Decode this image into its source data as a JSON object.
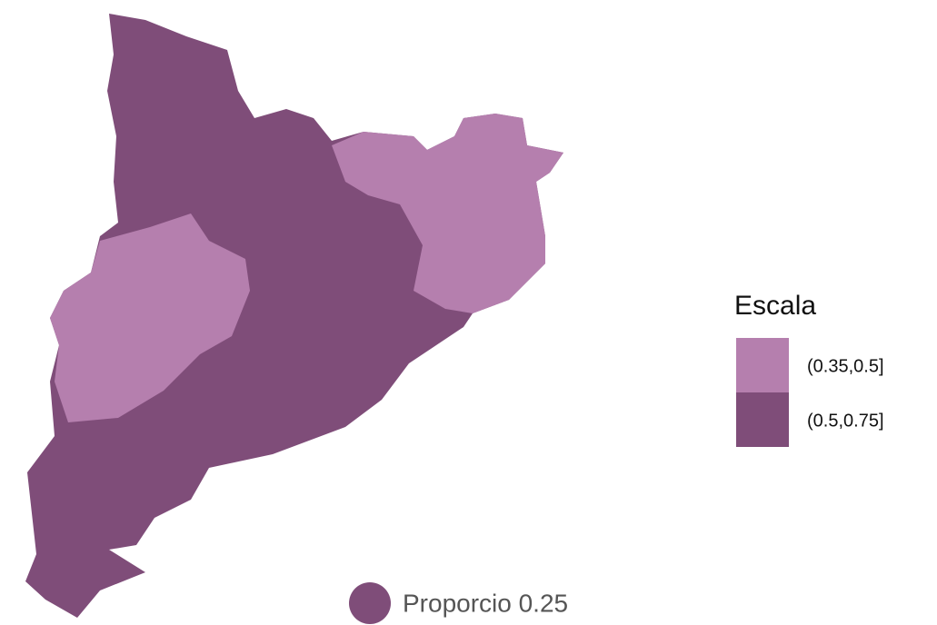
{
  "legend": {
    "title": "Escala",
    "items": [
      {
        "label": "(0.35,0.5]",
        "color": "#b57fae"
      },
      {
        "label": "(0.5,0.75]",
        "color": "#7f4d79"
      }
    ]
  },
  "point_label": "Proporcio 0.25"
}
